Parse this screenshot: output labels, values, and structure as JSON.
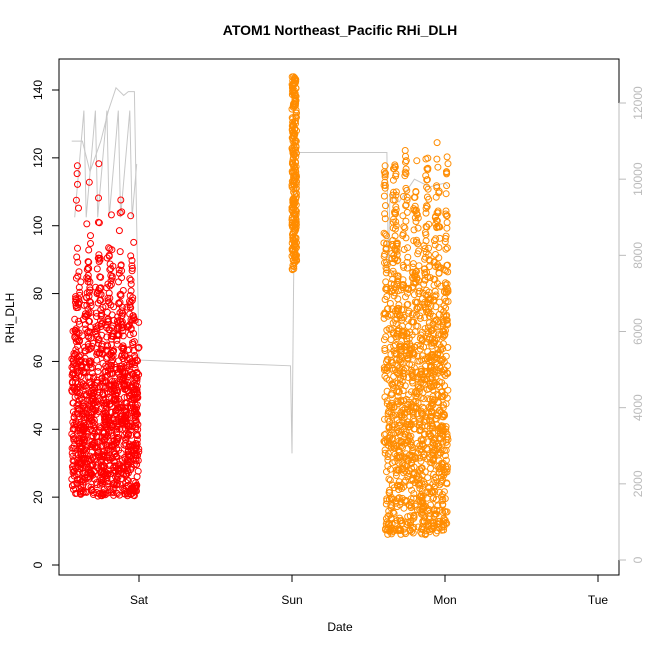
{
  "chart_data": {
    "type": "scatter",
    "title": "ATOM1 Northeast_Pacific RHi_DLH",
    "xlabel": "Date",
    "ylabel": "RHi_DLH",
    "x_ticks": [
      "Sat",
      "Sun",
      "Mon",
      "Tue"
    ],
    "ylim": [
      0,
      145
    ],
    "y_ticks": [
      "0",
      "20",
      "40",
      "60",
      "80",
      "100",
      "120",
      "140"
    ],
    "y2lim": [
      0,
      12500
    ],
    "y2_ticks": [
      "0",
      "2000",
      "4000",
      "6000",
      "8000",
      "10000",
      "12000"
    ],
    "grid": false,
    "colors": {
      "flight1": "#ff0000",
      "flight2": "#ff8c00",
      "altitude": "#c8c8c8",
      "axis2": "#bbbbbb"
    },
    "series": [
      {
        "values_desc": "RHi clusters",
        "clusters": [
          {
            "day_start": -0.44,
            "day_end": 0.0,
            "y_min": 2,
            "y_max": 124,
            "color": "flight1",
            "density": 1300
          },
          {
            "day_start": 1.0,
            "day_end": 1.03,
            "y_min": 87,
            "y_max": 144,
            "color": "flight2",
            "density": 260
          },
          {
            "day_start": 1.6,
            "day_end": 2.02,
            "y_min": 2,
            "y_max": 140,
            "color": "flight2",
            "density": 1400
          }
        ]
      }
    ],
    "altitude_track": [
      [
        -0.44,
        11000
      ],
      [
        -0.37,
        11000
      ],
      [
        -0.32,
        10200
      ],
      [
        -0.25,
        11000
      ],
      [
        -0.2,
        11800
      ],
      [
        -0.15,
        12400
      ],
      [
        -0.1,
        12200
      ],
      [
        -0.07,
        12300
      ],
      [
        -0.03,
        12300
      ],
      [
        0.0,
        5300
      ],
      [
        0.01,
        5250
      ],
      [
        0.99,
        5100
      ],
      [
        1.0,
        2800
      ],
      [
        1.01,
        7000
      ],
      [
        1.02,
        10700
      ],
      [
        1.1,
        10700
      ],
      [
        1.5,
        10700
      ],
      [
        1.62,
        10700
      ],
      [
        1.63,
        7500
      ],
      [
        1.64,
        9600
      ],
      [
        1.7,
        9400
      ],
      [
        1.8,
        10000
      ],
      [
        1.9,
        9800
      ],
      [
        2.0,
        9900
      ],
      [
        2.02,
        9800
      ]
    ]
  }
}
